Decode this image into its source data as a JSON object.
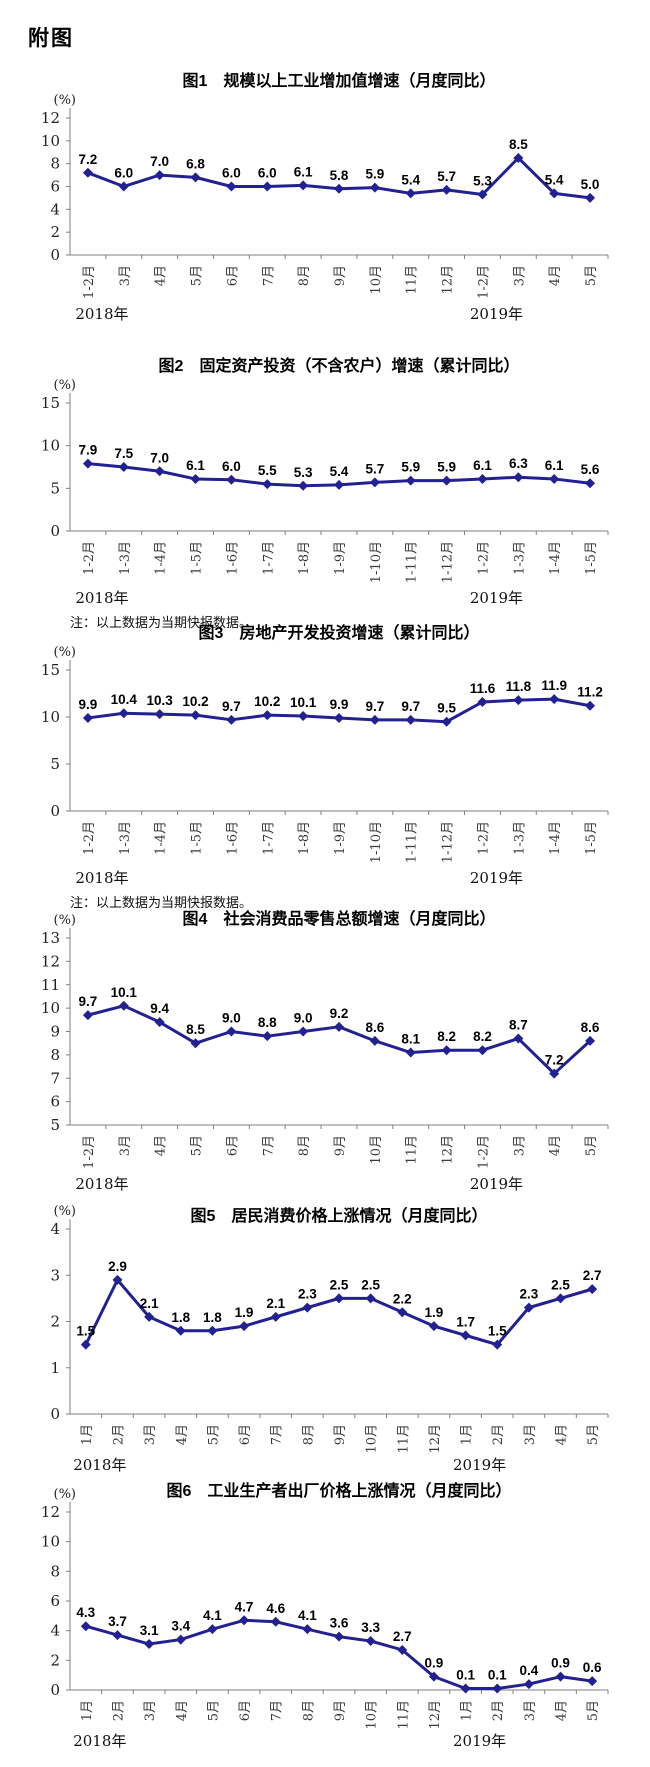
{
  "page": {
    "header": "附图"
  },
  "line_color": "#232192",
  "chart_data": [
    {
      "type": "line",
      "title": "图1　规模以上工业增加值增速（月度同比）",
      "unit": "(%)",
      "categories": [
        "1-2月",
        "3月",
        "4月",
        "5月",
        "6月",
        "7月",
        "8月",
        "9月",
        "10月",
        "11月",
        "12月",
        "1-2月",
        "3月",
        "4月",
        "5月"
      ],
      "values": [
        7.2,
        6.0,
        7.0,
        6.8,
        6.0,
        6.0,
        6.1,
        5.8,
        5.9,
        5.4,
        5.7,
        5.3,
        8.5,
        5.4,
        5.0
      ],
      "ylim": [
        0,
        12
      ],
      "ytick_step": 2,
      "grid": false,
      "legend": null,
      "marker": "diamond",
      "data_labels": true,
      "year_labels": [
        {
          "text": "2018年",
          "index": 0
        },
        {
          "text": "2019年",
          "index": 11
        }
      ]
    },
    {
      "type": "line",
      "title": "图2　固定资产投资（不含农户）增速（累计同比）",
      "unit": "(%)",
      "categories": [
        "1-2月",
        "1-3月",
        "1-4月",
        "1-5月",
        "1-6月",
        "1-7月",
        "1-8月",
        "1-9月",
        "1-10月",
        "1-11月",
        "1-12月",
        "1-2月",
        "1-3月",
        "1-4月",
        "1-5月"
      ],
      "values": [
        7.9,
        7.5,
        7.0,
        6.1,
        6.0,
        5.5,
        5.3,
        5.4,
        5.7,
        5.9,
        5.9,
        6.1,
        6.3,
        6.1,
        5.6
      ],
      "ylim": [
        0,
        15
      ],
      "ytick_step": 5,
      "grid": false,
      "legend": null,
      "marker": "diamond",
      "data_labels": true,
      "year_labels": [
        {
          "text": "2018年",
          "index": 0
        },
        {
          "text": "2019年",
          "index": 11
        }
      ],
      "note": "注：以上数据为当期快报数据。"
    },
    {
      "type": "line",
      "title": "图3　房地产开发投资增速（累计同比）",
      "unit": "(%)",
      "categories": [
        "1-2月",
        "1-3月",
        "1-4月",
        "1-5月",
        "1-6月",
        "1-7月",
        "1-8月",
        "1-9月",
        "1-10月",
        "1-11月",
        "1-12月",
        "1-2月",
        "1-3月",
        "1-4月",
        "1-5月"
      ],
      "values": [
        9.9,
        10.4,
        10.3,
        10.2,
        9.7,
        10.2,
        10.1,
        9.9,
        9.7,
        9.7,
        9.5,
        11.6,
        11.8,
        11.9,
        11.2
      ],
      "ylim": [
        0,
        15
      ],
      "ytick_step": 5,
      "grid": false,
      "legend": null,
      "marker": "diamond",
      "data_labels": true,
      "year_labels": [
        {
          "text": "2018年",
          "index": 0
        },
        {
          "text": "2019年",
          "index": 11
        }
      ],
      "note": "注：以上数据为当期快报数据。"
    },
    {
      "type": "line",
      "title": "图4　社会消费品零售总额增速（月度同比）",
      "unit": "(%)",
      "categories": [
        "1-2月",
        "3月",
        "4月",
        "5月",
        "6月",
        "7月",
        "8月",
        "9月",
        "10月",
        "11月",
        "12月",
        "1-2月",
        "3月",
        "4月",
        "5月"
      ],
      "values": [
        9.7,
        10.1,
        9.4,
        8.5,
        9.0,
        8.8,
        9.0,
        9.2,
        8.6,
        8.1,
        8.2,
        8.2,
        8.7,
        7.2,
        8.6
      ],
      "ylim": [
        5,
        13
      ],
      "ytick_step": 1,
      "grid": false,
      "legend": null,
      "marker": "diamond",
      "data_labels": true,
      "year_labels": [
        {
          "text": "2018年",
          "index": 0
        },
        {
          "text": "2019年",
          "index": 11
        }
      ]
    },
    {
      "type": "line",
      "title": "图5　居民消费价格上涨情况（月度同比）",
      "unit": "(%)",
      "categories": [
        "1月",
        "2月",
        "3月",
        "4月",
        "5月",
        "6月",
        "7月",
        "8月",
        "9月",
        "10月",
        "11月",
        "12月",
        "1月",
        "2月",
        "3月",
        "4月",
        "5月"
      ],
      "values": [
        1.5,
        2.9,
        2.1,
        1.8,
        1.8,
        1.9,
        2.1,
        2.3,
        2.5,
        2.5,
        2.2,
        1.9,
        1.7,
        1.5,
        2.3,
        2.5,
        2.7
      ],
      "ylim": [
        0,
        4
      ],
      "ytick_step": 1,
      "grid": false,
      "legend": null,
      "marker": "diamond",
      "data_labels": true,
      "year_labels": [
        {
          "text": "2018年",
          "index": 0
        },
        {
          "text": "2019年",
          "index": 12
        }
      ]
    },
    {
      "type": "line",
      "title": "图6　工业生产者出厂价格上涨情况（月度同比）",
      "unit": "(%)",
      "categories": [
        "1月",
        "2月",
        "3月",
        "4月",
        "5月",
        "6月",
        "7月",
        "8月",
        "9月",
        "10月",
        "11月",
        "12月",
        "1月",
        "2月",
        "3月",
        "4月",
        "5月"
      ],
      "values": [
        4.3,
        3.7,
        3.1,
        3.4,
        4.1,
        4.7,
        4.6,
        4.1,
        3.6,
        3.3,
        2.7,
        0.9,
        0.1,
        0.1,
        0.4,
        0.9,
        0.6
      ],
      "ylim": [
        0,
        12
      ],
      "ytick_step": 2,
      "grid": false,
      "legend": null,
      "marker": "diamond",
      "data_labels": true,
      "year_labels": [
        {
          "text": "2018年",
          "index": 0
        },
        {
          "text": "2019年",
          "index": 12
        }
      ]
    }
  ]
}
